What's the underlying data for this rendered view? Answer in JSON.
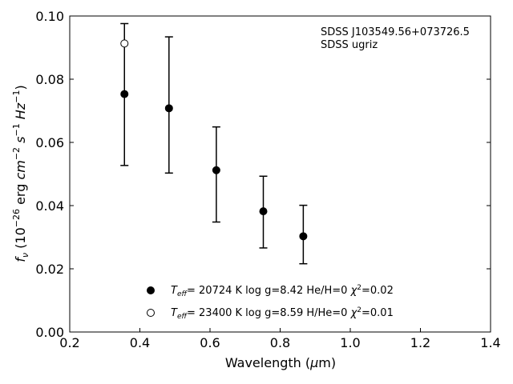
{
  "chart_data": {
    "type": "scatter",
    "xlabel": "Wavelength (μm)",
    "ylabel": "f_ν (10^-26 erg cm^-2 s^-1 Hz^-1)",
    "xlim": [
      0.2,
      1.4
    ],
    "ylim": [
      0.0,
      0.1
    ],
    "x_ticks": [
      "0.2",
      "0.4",
      "0.6",
      "0.8",
      "1.0",
      "1.2",
      "1.4"
    ],
    "y_ticks": [
      "0.00",
      "0.02",
      "0.04",
      "0.06",
      "0.08",
      "0.10"
    ],
    "grid": false,
    "legend_position": "bottom-center",
    "annotations": [
      "SDSS J103549.56+073726.5",
      "SDSS ugriz"
    ],
    "errorbars": {
      "x": [
        0.356,
        0.483,
        0.618,
        0.752,
        0.866
      ],
      "upper": [
        0.0976,
        0.0934,
        0.0649,
        0.0493,
        0.0401
      ],
      "lower": [
        0.0527,
        0.0503,
        0.0348,
        0.0266,
        0.0216
      ]
    },
    "series": [
      {
        "marker": "filled-circle",
        "legend": {
          "teff_sub": "eff",
          "rest": "= 20724 K  log g=8.42  He/H=0  ",
          "chi_value": "=0.02"
        },
        "x": [
          0.356,
          0.483,
          0.618,
          0.752,
          0.866
        ],
        "y": [
          0.0753,
          0.0708,
          0.0512,
          0.0382,
          0.0303
        ]
      },
      {
        "marker": "open-circle",
        "legend": {
          "teff_sub": "eff",
          "rest": "= 23400 K  log g=8.59  H/He=0  ",
          "chi_value": "=0.01"
        },
        "x": [
          0.356
        ],
        "y": [
          0.0913
        ]
      }
    ],
    "colors": {
      "marker": "#000000",
      "open_fill": "#ffffff"
    }
  }
}
